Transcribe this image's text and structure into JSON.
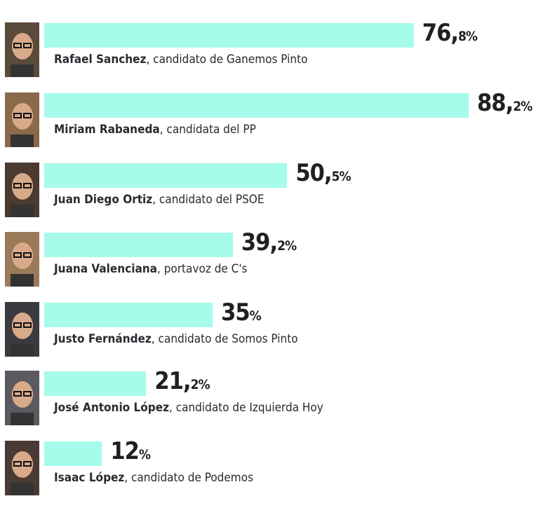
{
  "chart_data": {
    "type": "bar",
    "orientation": "horizontal",
    "xlim": [
      0,
      100
    ],
    "bar_color": "#a6fbea",
    "items": [
      {
        "name": "Rafael Sanchez",
        "role": ", candidato de Ganemos Pinto",
        "value": 76.8,
        "label_main": "76,",
        "label_small": "8%",
        "photo_bg": "#5a4a3a"
      },
      {
        "name": "Miriam Rabaneda",
        "role": ", candidata del PP",
        "value": 88.2,
        "label_main": "88,",
        "label_small": "2%",
        "photo_bg": "#8a6a4a"
      },
      {
        "name": "Juan Diego Ortiz",
        "role": ", candidato del PSOE",
        "value": 50.5,
        "label_main": "50,",
        "label_small": "5%",
        "photo_bg": "#4a3a30"
      },
      {
        "name": "Juana Valenciana",
        "role": ", portavoz de C's",
        "value": 39.2,
        "label_main": "39,",
        "label_small": "2%",
        "photo_bg": "#9a7a5a"
      },
      {
        "name": "Justo Fernández",
        "role": ", candidato de Somos Pinto",
        "value": 35,
        "label_main": "35",
        "label_small": "%",
        "photo_bg": "#3a3a40"
      },
      {
        "name": "José Antonio López",
        "role": ", candidato de Izquierda Hoy",
        "value": 21.2,
        "label_main": "21,",
        "label_small": "2%",
        "photo_bg": "#5a5a60"
      },
      {
        "name": "Isaac López",
        "role": ", candidato de Podemos",
        "value": 12,
        "label_main": "12",
        "label_small": "%",
        "photo_bg": "#4a3a35"
      }
    ]
  }
}
